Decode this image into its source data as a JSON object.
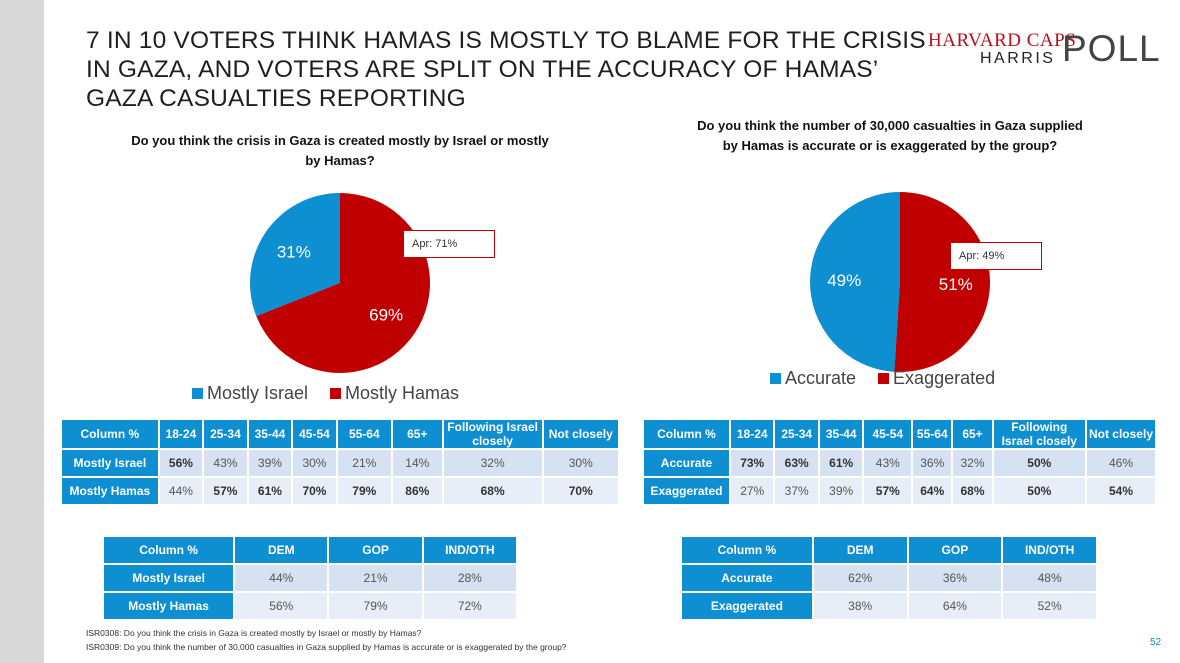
{
  "title": "7 in 10 voters think Hamas is mostly to blame for the crisis in Gaza, and voters are split on the accuracy of Hamas’ Gaza casualties reporting",
  "logo": {
    "line1": "HARVARD CAPS",
    "line2": "HARRIS",
    "line3": "POLL"
  },
  "colors": {
    "blue": "#0d8fd1",
    "red": "#c00000"
  },
  "chart_data": [
    {
      "type": "pie",
      "title": "Do you think the crisis in Gaza is created mostly by Israel or mostly by Hamas?",
      "categories": [
        "Mostly Israel",
        "Mostly Hamas"
      ],
      "values": [
        31,
        69
      ],
      "labels": [
        "31%",
        "69%"
      ],
      "colors": [
        "#0d8fd1",
        "#c00000"
      ],
      "callout": "Apr: 71%",
      "legend": "bottom"
    },
    {
      "type": "pie",
      "title": "Do you think the number of 30,000 casualties in Gaza supplied by Hamas is accurate or is exaggerated by the group?",
      "categories": [
        "Accurate",
        "Exaggerated"
      ],
      "values": [
        49,
        51
      ],
      "labels": [
        "49%",
        "51%"
      ],
      "colors": [
        "#0d8fd1",
        "#c00000"
      ],
      "callout": "Apr: 49%",
      "legend": "bottom"
    }
  ],
  "tables": {
    "age1": {
      "headers": [
        "Column %",
        "18-24",
        "25-34",
        "35-44",
        "45-54",
        "55-64",
        "65+",
        "Following Israel closely",
        "Not closely"
      ],
      "rows": [
        {
          "label": "Mostly Israel",
          "cells": [
            "56%",
            "43%",
            "39%",
            "30%",
            "21%",
            "14%",
            "32%",
            "30%"
          ]
        },
        {
          "label": "Mostly Hamas",
          "cells": [
            "44%",
            "57%",
            "61%",
            "70%",
            "79%",
            "86%",
            "68%",
            "70%"
          ]
        }
      ]
    },
    "age2": {
      "headers": [
        "Column %",
        "18-24",
        "25-34",
        "35-44",
        "45-54",
        "55-64",
        "65+",
        "Following Israel closely",
        "Not closely"
      ],
      "rows": [
        {
          "label": "Accurate",
          "cells": [
            "73%",
            "63%",
            "61%",
            "43%",
            "36%",
            "32%",
            "50%",
            "46%"
          ]
        },
        {
          "label": "Exaggerated",
          "cells": [
            "27%",
            "37%",
            "39%",
            "57%",
            "64%",
            "68%",
            "50%",
            "54%"
          ]
        }
      ]
    },
    "party1": {
      "headers": [
        "Column %",
        "DEM",
        "GOP",
        "IND/OTH"
      ],
      "rows": [
        {
          "label": "Mostly Israel",
          "cells": [
            "44%",
            "21%",
            "28%"
          ]
        },
        {
          "label": "Mostly Hamas",
          "cells": [
            "56%",
            "79%",
            "72%"
          ]
        }
      ]
    },
    "party2": {
      "headers": [
        "Column %",
        "DEM",
        "GOP",
        "IND/OTH"
      ],
      "rows": [
        {
          "label": "Accurate",
          "cells": [
            "62%",
            "36%",
            "48%"
          ]
        },
        {
          "label": "Exaggerated",
          "cells": [
            "38%",
            "64%",
            "52%"
          ]
        }
      ]
    }
  },
  "footnotes": [
    "ISR0308: Do you think the crisis in Gaza is created mostly by Israel or mostly by Hamas?",
    "ISR0309: Do you think the number of 30,000 casualties in Gaza supplied by Hamas is accurate or is exaggerated by the group?"
  ],
  "page_number": "52"
}
